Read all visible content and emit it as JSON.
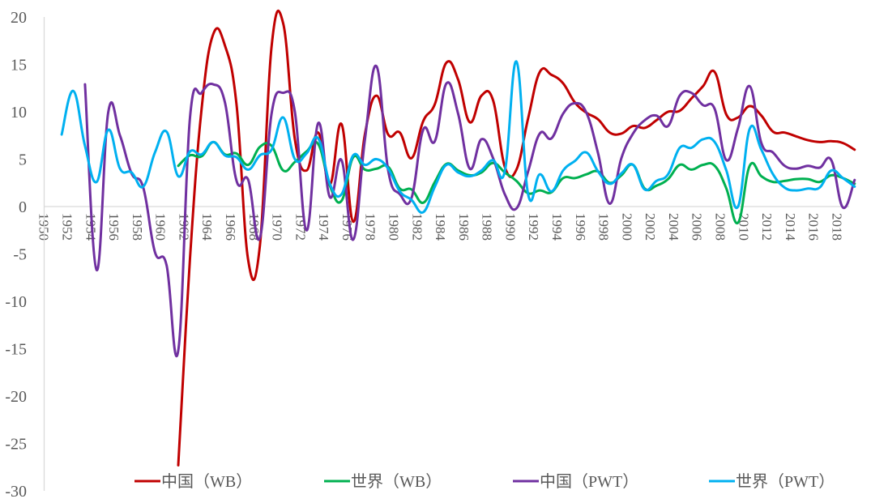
{
  "chart_data": {
    "type": "line",
    "title": "",
    "xlabel": "",
    "ylabel": "",
    "ylim": [
      -30,
      20
    ],
    "yticks": [
      20,
      15,
      10,
      5,
      0,
      -5,
      -10,
      -15,
      -20,
      -25,
      -30
    ],
    "grid": false,
    "legend_position": "bottom",
    "x": [
      1950,
      1951,
      1952,
      1953,
      1954,
      1955,
      1956,
      1957,
      1958,
      1959,
      1960,
      1961,
      1962,
      1963,
      1964,
      1965,
      1966,
      1967,
      1968,
      1969,
      1970,
      1971,
      1972,
      1973,
      1974,
      1975,
      1976,
      1977,
      1978,
      1979,
      1980,
      1981,
      1982,
      1983,
      1984,
      1985,
      1986,
      1987,
      1988,
      1989,
      1990,
      1991,
      1992,
      1993,
      1994,
      1995,
      1996,
      1997,
      1998,
      1999,
      2000,
      2001,
      2002,
      2003,
      2004,
      2005,
      2006,
      2007,
      2008,
      2009,
      2010,
      2011,
      2012,
      2013,
      2014,
      2015,
      2016,
      2017,
      2018,
      2019
    ],
    "xtick_labels": [
      "1950",
      "1952",
      "1954",
      "1956",
      "1958",
      "1960",
      "1962",
      "1964",
      "1966",
      "1968",
      "1970",
      "1972",
      "1974",
      "1976",
      "1978",
      "1980",
      "1982",
      "1984",
      "1986",
      "1988",
      "1990",
      "1992",
      "1994",
      "1996",
      "1998",
      "2000",
      "2002",
      "2004",
      "2006",
      "2008",
      "2010",
      "2012",
      "2014",
      "2016",
      "2018"
    ],
    "series": [
      {
        "name": "中国（WB）",
        "color": "#c00000",
        "values": [
          null,
          null,
          null,
          null,
          null,
          null,
          null,
          null,
          null,
          null,
          null,
          -27.3,
          -5.6,
          10.3,
          18.2,
          17.0,
          10.7,
          -5.7,
          -4.1,
          16.9,
          19.3,
          7.1,
          3.8,
          7.8,
          2.3,
          8.7,
          -1.6,
          7.6,
          11.7,
          7.6,
          7.8,
          5.1,
          9.0,
          10.8,
          15.2,
          13.4,
          8.9,
          11.7,
          11.2,
          4.2,
          3.9,
          9.3,
          14.2,
          13.9,
          13.0,
          11.0,
          9.9,
          9.2,
          7.8,
          7.7,
          8.5,
          8.3,
          9.1,
          10.0,
          10.1,
          11.4,
          12.7,
          14.2,
          9.7,
          9.4,
          10.6,
          9.6,
          7.9,
          7.8,
          7.4,
          7.0,
          6.8,
          6.9,
          6.7,
          6.0
        ]
      },
      {
        "name": "世界（WB）",
        "color": "#00b050",
        "values": [
          null,
          null,
          null,
          null,
          null,
          null,
          null,
          null,
          null,
          null,
          null,
          4.3,
          5.4,
          5.3,
          6.8,
          5.5,
          5.6,
          4.4,
          6.3,
          6.4,
          3.8,
          4.7,
          5.8,
          6.6,
          2.2,
          0.6,
          5.2,
          3.9,
          4.0,
          4.2,
          1.9,
          1.8,
          0.4,
          2.6,
          4.5,
          3.8,
          3.3,
          3.6,
          4.6,
          3.6,
          2.7,
          1.4,
          1.7,
          1.5,
          3.0,
          3.0,
          3.4,
          3.7,
          2.5,
          3.3,
          4.4,
          1.9,
          2.2,
          2.9,
          4.4,
          3.9,
          4.4,
          4.3,
          1.9,
          -1.7,
          4.3,
          3.2,
          2.6,
          2.7,
          2.9,
          2.9,
          2.6,
          3.3,
          3.0,
          2.4
        ]
      },
      {
        "name": "中国（PWT）",
        "color": "#7030a0",
        "values": [
          null,
          null,
          null,
          12.9,
          -6.7,
          10.0,
          7.5,
          3.5,
          2.0,
          -4.8,
          -6.2,
          -15.2,
          9.3,
          12.0,
          12.9,
          11.0,
          2.7,
          2.8,
          -3.3,
          9.8,
          12.0,
          10.0,
          -2.5,
          8.8,
          1.0,
          4.9,
          -3.5,
          7.0,
          14.8,
          3.8,
          1.3,
          0.9,
          8.1,
          6.9,
          13.0,
          9.8,
          4.0,
          7.1,
          5.1,
          1.3,
          -0.2,
          3.7,
          7.7,
          7.2,
          9.8,
          10.9,
          9.9,
          5.6,
          0.3,
          5.1,
          7.7,
          9.1,
          9.6,
          8.5,
          11.7,
          12.0,
          10.7,
          10.3,
          4.9,
          8.3,
          12.7,
          6.7,
          5.7,
          4.3,
          4.0,
          4.3,
          4.1,
          4.9,
          -0.1,
          2.8
        ]
      },
      {
        "name": "世界（PWT）",
        "color": "#00b0f0",
        "values": [
          null,
          7.6,
          12.2,
          6.4,
          2.6,
          8.1,
          4.0,
          3.6,
          2.1,
          5.7,
          7.9,
          3.2,
          5.8,
          5.5,
          6.8,
          5.4,
          5.2,
          3.9,
          5.4,
          6.0,
          9.4,
          5.0,
          5.6,
          7.2,
          2.4,
          1.3,
          5.4,
          4.4,
          5.0,
          4.0,
          1.6,
          0.7,
          -0.6,
          2.1,
          4.4,
          3.6,
          3.2,
          3.8,
          4.9,
          3.7,
          15.3,
          1.3,
          3.4,
          1.6,
          3.8,
          4.8,
          5.7,
          3.7,
          2.4,
          3.5,
          4.4,
          1.8,
          2.7,
          3.4,
          6.2,
          6.2,
          7.1,
          6.8,
          3.8,
          0.0,
          8.2,
          6.0,
          3.4,
          2.0,
          1.7,
          1.9,
          2.0,
          3.8,
          3.0,
          2.1
        ]
      }
    ]
  }
}
